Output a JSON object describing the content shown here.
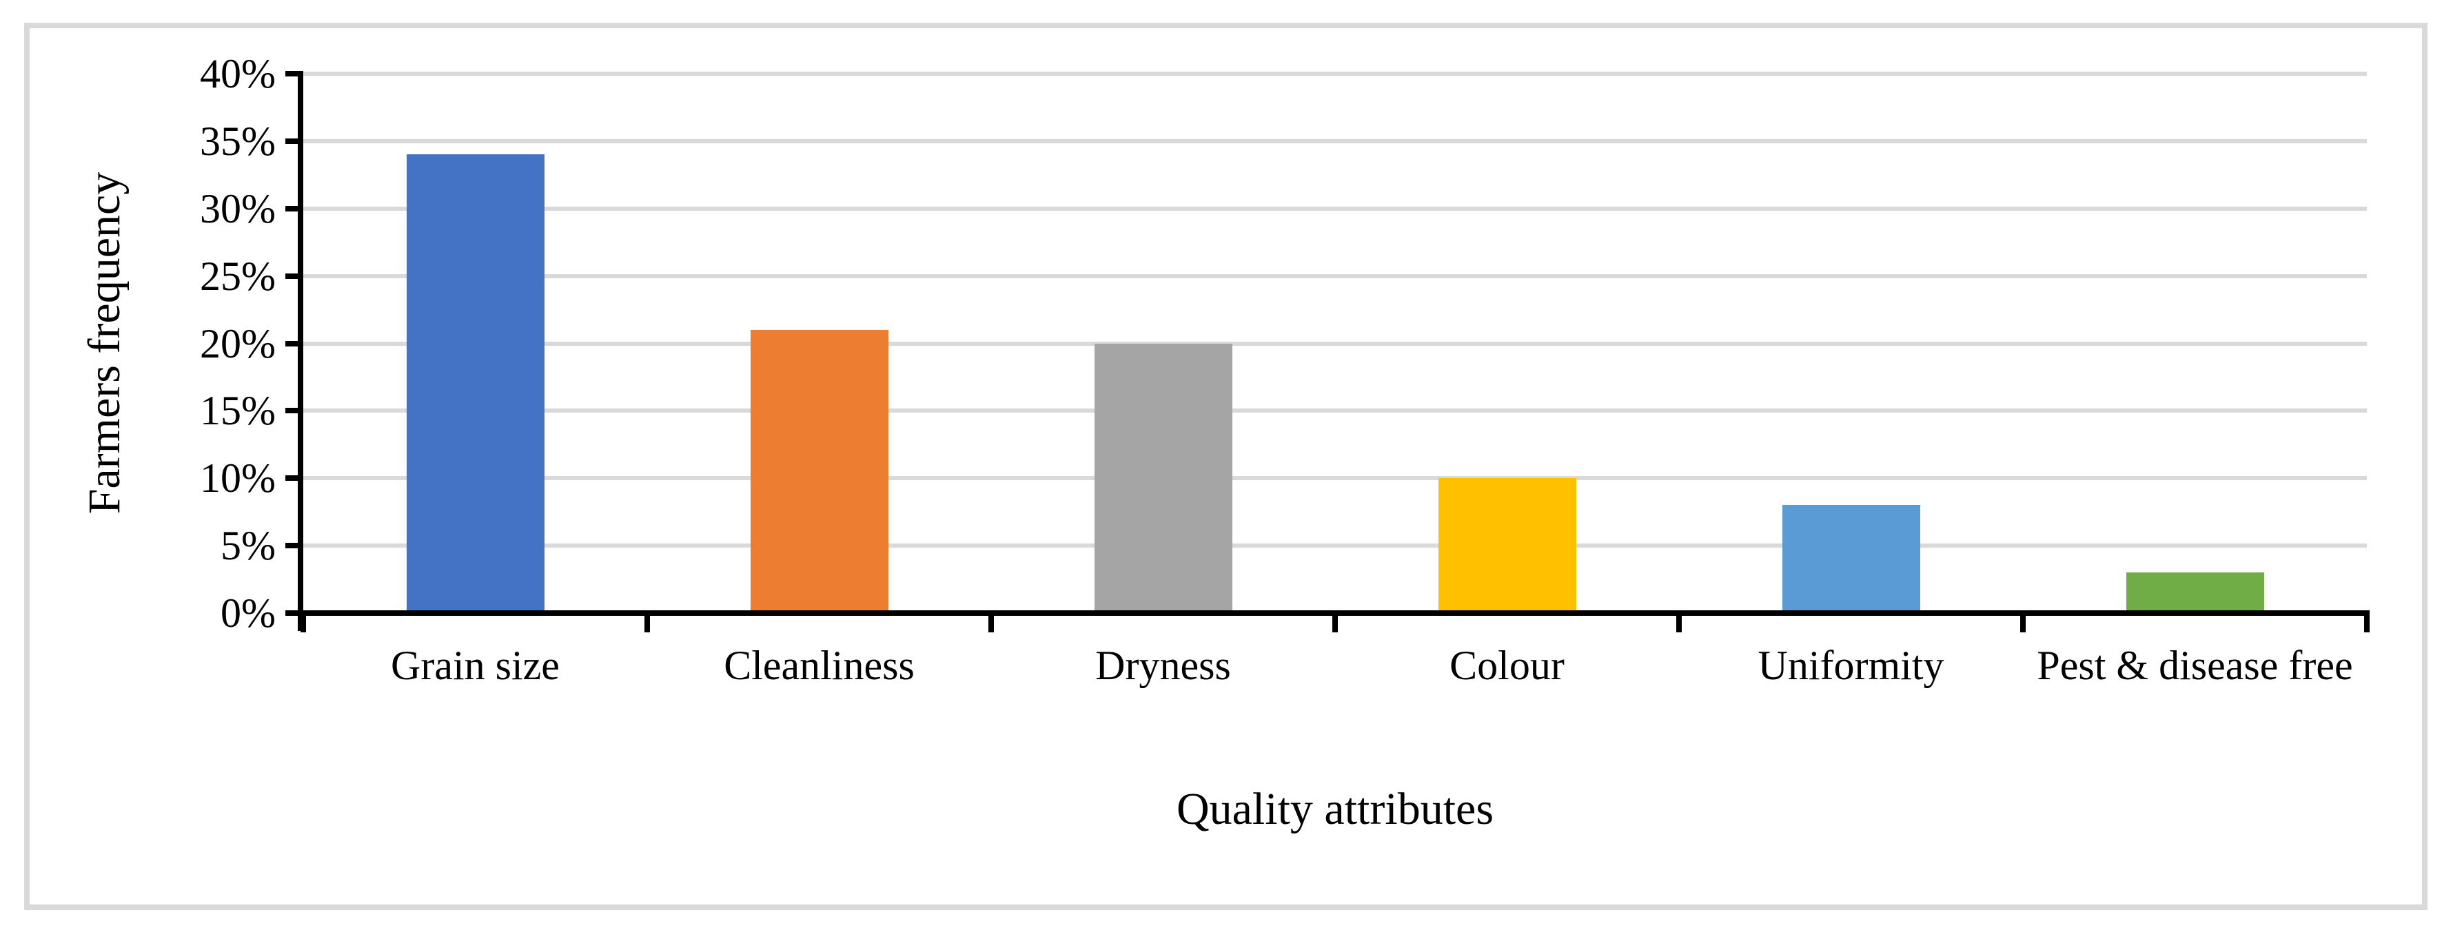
{
  "figure": {
    "background_color": "#FFFFFF",
    "border_color": "#D9D9D9"
  },
  "chart_data": {
    "type": "bar",
    "title": "",
    "xlabel": "Quality attributes",
    "ylabel": "Farmers frequency",
    "categories": [
      "Grain size",
      "Cleanliness",
      "Dryness",
      "Colour",
      "Uniformity",
      "Pest & disease free"
    ],
    "values": [
      34,
      21,
      20,
      10,
      8,
      3
    ],
    "value_unit": "%",
    "bar_colors": [
      "#4472C4",
      "#ED7D31",
      "#A5A5A5",
      "#FFC000",
      "#5B9BD5",
      "#70AD47"
    ],
    "ylim": [
      0,
      40
    ],
    "ytick_step": 5,
    "ytick_labels": [
      "0%",
      "5%",
      "10%",
      "15%",
      "20%",
      "25%",
      "30%",
      "35%",
      "40%"
    ],
    "grid": "horizontal",
    "gridline_color": "#D9D9D9",
    "axis_color": "#000000",
    "legend_position": "none"
  }
}
